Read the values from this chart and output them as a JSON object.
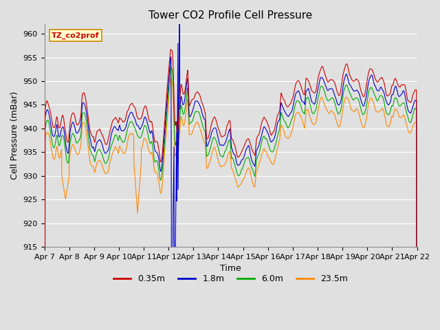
{
  "title": "Tower CO2 Profile Cell Pressure",
  "xlabel": "Time",
  "ylabel": "Cell Pressure (mBar)",
  "ylim": [
    915,
    962
  ],
  "yticks": [
    915,
    920,
    925,
    930,
    935,
    940,
    945,
    950,
    955,
    960
  ],
  "x_tick_labels": [
    "Apr 7",
    "Apr 8",
    "Apr 9",
    "Apr 10",
    "Apr 11",
    "Apr 12",
    "Apr 13",
    "Apr 14",
    "Apr 15",
    "Apr 16",
    "Apr 17",
    "Apr 18",
    "Apr 19",
    "Apr 20",
    "Apr 21",
    "Apr 22"
  ],
  "line_colors": [
    "#cc0000",
    "#0000cc",
    "#00aa00",
    "#ff8800"
  ],
  "line_labels": [
    "0.35m",
    "1.8m",
    "6.0m",
    "23.5m"
  ],
  "legend_label_text": "TZ_co2prof",
  "legend_box_color": "#ffffcc",
  "legend_box_edge": "#cc8800",
  "bg_color": "#e0e0e0",
  "grid_color": "#ffffff",
  "title_fontsize": 11,
  "axis_label_fontsize": 9,
  "tick_fontsize": 8,
  "legend_fontsize": 9,
  "offsets": [
    3.0,
    1.0,
    -1.0,
    -3.5
  ],
  "seed": 17
}
